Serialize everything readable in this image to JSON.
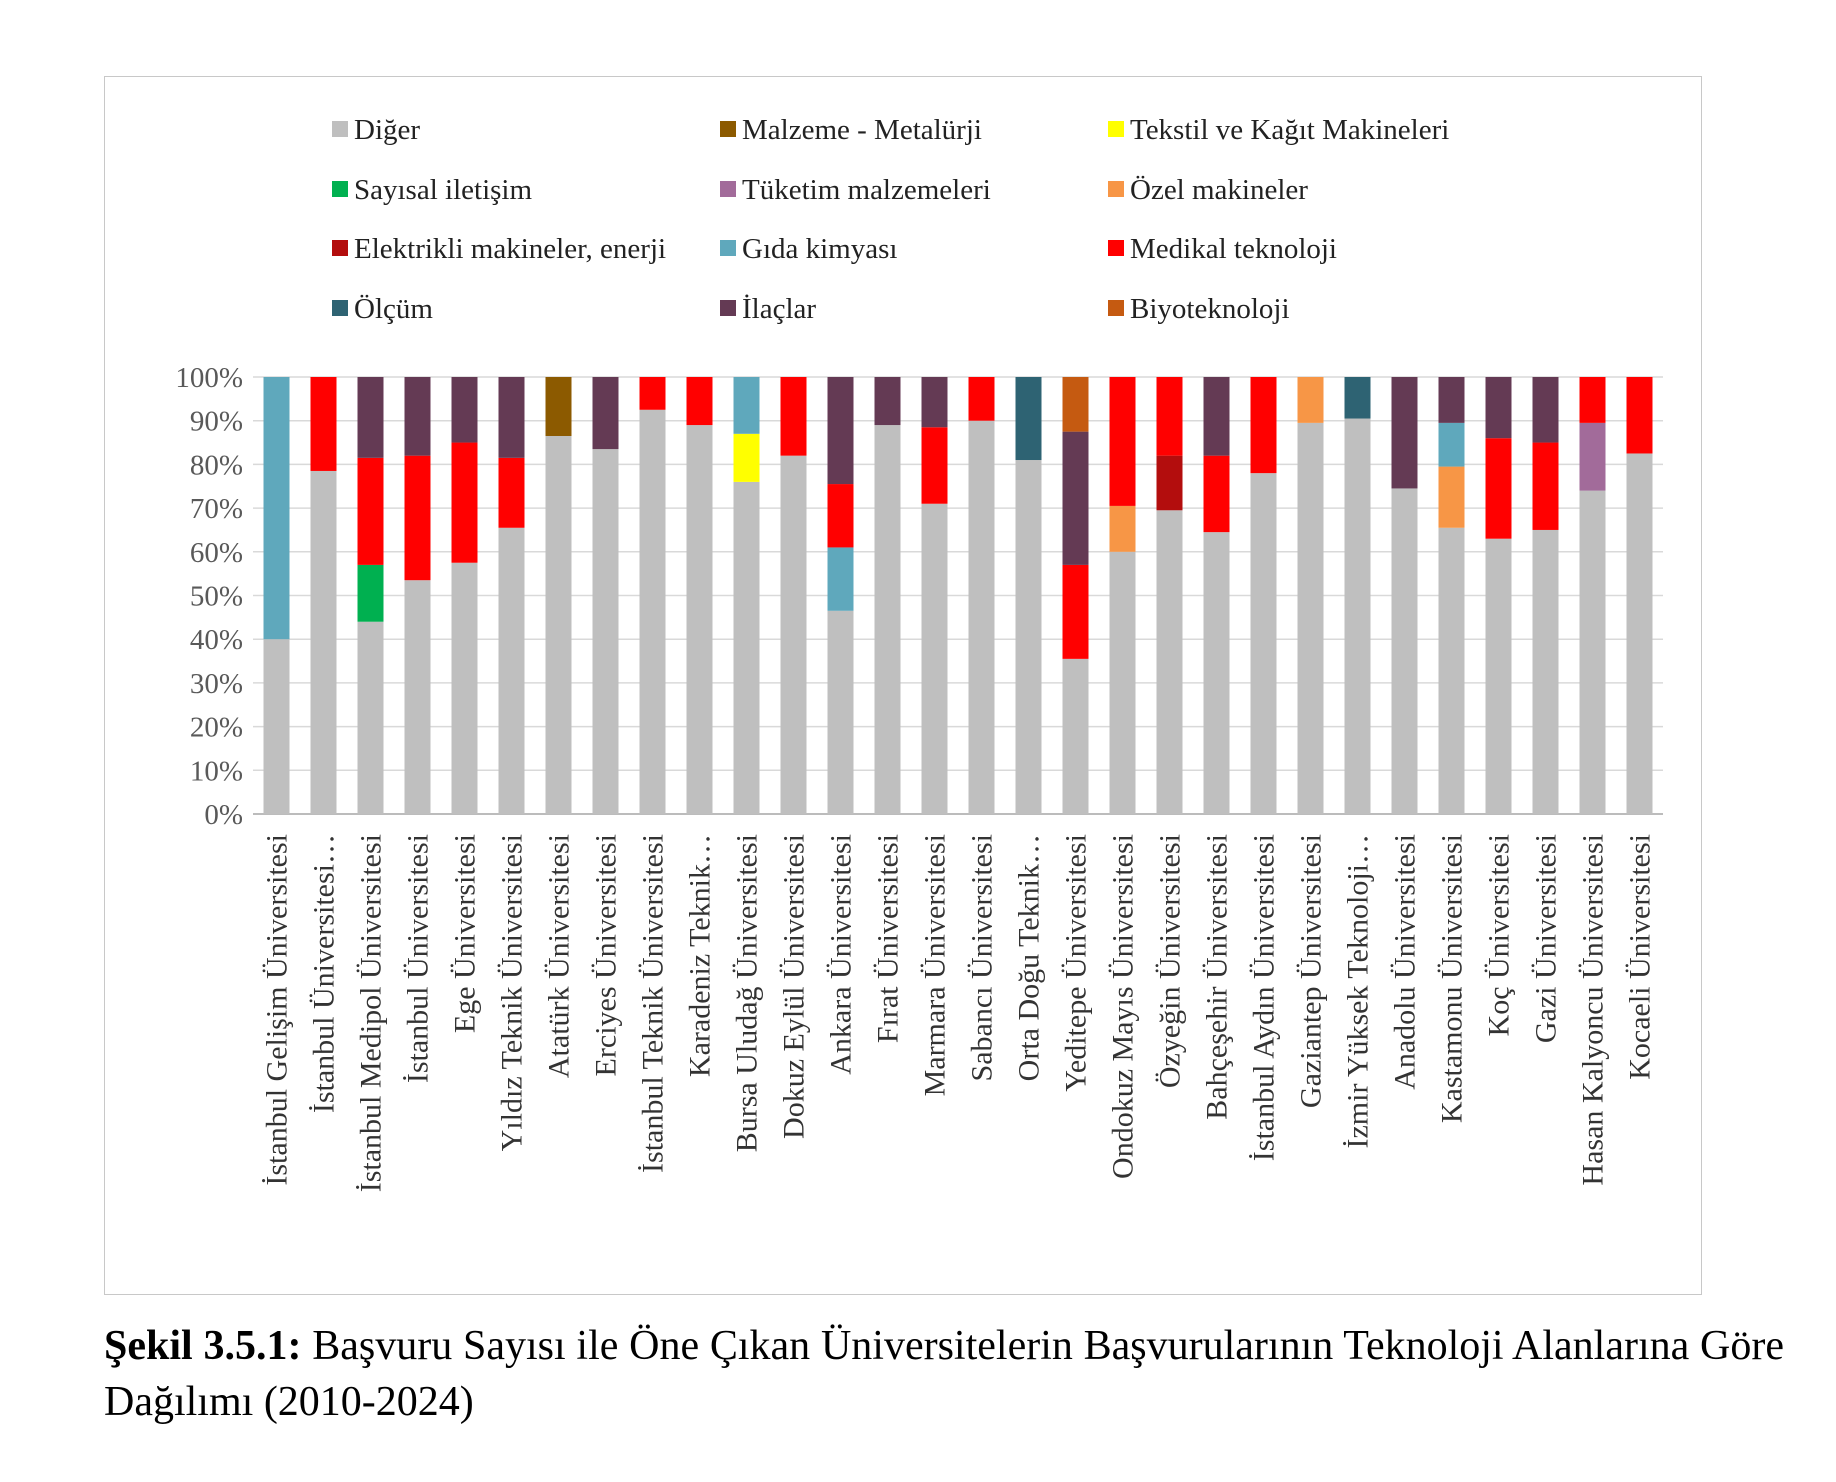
{
  "caption": {
    "label": "Şekil 3.5.1:",
    "text": "Başvuru Sayısı ile Öne Çıkan Üniversitelerin Başvurularının Teknoloji Alanlarına Göre Dağılımı (2010-2024)"
  },
  "chart_data": {
    "type": "bar",
    "stacked": true,
    "percent": true,
    "ylim": [
      0,
      100
    ],
    "yticks": [
      "0%",
      "10%",
      "20%",
      "30%",
      "40%",
      "50%",
      "60%",
      "70%",
      "80%",
      "90%",
      "100%"
    ],
    "grid": true,
    "legend_position": "top",
    "categories": [
      "İstanbul Gelişim Üniversitesi",
      "İstanbul Üniversitesi…",
      "İstanbul Medipol Üniversitesi",
      "İstanbul Üniversitesi",
      "Ege Üniversitesi",
      "Yıldız Teknik Üniversitesi",
      "Atatürk Üniversitesi",
      "Erciyes Üniversitesi",
      "İstanbul Teknik Üniversitesi",
      "Karadeniz Teknik…",
      "Bursa Uludağ Üniversitesi",
      "Dokuz Eylül Üniversitesi",
      "Ankara Üniversitesi",
      "Fırat Üniversitesi",
      "Marmara Üniversitesi",
      "Sabancı Üniversitesi",
      "Orta Doğu Teknik…",
      "Yeditepe Üniversitesi",
      "Ondokuz Mayıs Üniversitesi",
      "Özyeğin Üniversitesi",
      "Bahçeşehir Üniversitesi",
      "İstanbul Aydın Üniversitesi",
      "Gaziantep Üniversitesi",
      "İzmir Yüksek Teknoloji…",
      "Anadolu Üniversitesi",
      "Kastamonu Üniversitesi",
      "Koç Üniversitesi",
      "Gazi Üniversitesi",
      "Hasan Kalyoncu Üniversitesi",
      "Kocaeli Üniversitesi"
    ],
    "series": [
      {
        "name": "Diğer",
        "color": "#bfbfbf",
        "values": [
          40,
          78.5,
          44,
          53.5,
          57.5,
          65.5,
          86.5,
          83.5,
          92.5,
          89,
          76,
          82,
          46.5,
          89,
          71,
          90,
          81,
          35.5,
          60,
          69.5,
          64.5,
          78,
          89.5,
          90.5,
          74.5,
          65.5,
          63,
          65,
          74,
          82.5
        ]
      },
      {
        "name": "Malzeme - Metalürji",
        "color": "#8c5a00",
        "values": [
          0,
          0,
          0,
          0,
          0,
          0,
          13.5,
          0,
          0,
          0,
          0,
          0,
          0,
          0,
          0,
          0,
          0,
          0,
          0,
          0,
          0,
          0,
          0,
          0,
          0,
          0,
          0,
          0,
          0,
          0
        ]
      },
      {
        "name": "Tekstil ve Kağıt Makineleri",
        "color": "#ffff00",
        "values": [
          0,
          0,
          0,
          0,
          0,
          0,
          0,
          0,
          0,
          0,
          11,
          0,
          0,
          0,
          0,
          0,
          0,
          0,
          0,
          0,
          0,
          0,
          0,
          0,
          0,
          0,
          0,
          0,
          0,
          0
        ]
      },
      {
        "name": "Sayısal iletişim",
        "color": "#00b050",
        "values": [
          0,
          0,
          13,
          0,
          0,
          0,
          0,
          0,
          0,
          0,
          0,
          0,
          0,
          0,
          0,
          0,
          0,
          0,
          0,
          0,
          0,
          0,
          0,
          0,
          0,
          0,
          0,
          0,
          0,
          0
        ]
      },
      {
        "name": "Tüketim malzemeleri",
        "color": "#a26b9a",
        "values": [
          0,
          0,
          0,
          0,
          0,
          0,
          0,
          0,
          0,
          0,
          0,
          0,
          0,
          0,
          0,
          0,
          0,
          0,
          0,
          0,
          0,
          0,
          0,
          0,
          0,
          0,
          0,
          0,
          15.5,
          0
        ]
      },
      {
        "name": "Özel makineler",
        "color": "#f79646",
        "values": [
          0,
          0,
          0,
          0,
          0,
          0,
          0,
          0,
          0,
          0,
          0,
          0,
          0,
          0,
          0,
          0,
          0,
          0,
          10.5,
          0,
          0,
          0,
          10.5,
          0,
          0,
          14,
          0,
          0,
          0,
          0
        ]
      },
      {
        "name": "Elektrikli makineler, enerji",
        "color": "#b30d0d",
        "values": [
          0,
          0,
          0,
          0,
          0,
          0,
          0,
          0,
          0,
          0,
          0,
          0,
          0,
          0,
          0,
          0,
          0,
          0,
          0,
          12.5,
          0,
          0,
          0,
          0,
          0,
          0,
          0,
          0,
          0,
          0
        ]
      },
      {
        "name": "Gıda kimyası",
        "color": "#5fa8bc",
        "values": [
          60,
          0,
          0,
          0,
          0,
          0,
          0,
          0,
          0,
          0,
          13,
          0,
          14.5,
          0,
          0,
          0,
          0,
          0,
          0,
          0,
          0,
          0,
          0,
          0,
          0,
          10,
          0,
          0,
          0,
          0
        ]
      },
      {
        "name": "Medikal teknoloji",
        "color": "#ff0000",
        "values": [
          0,
          21.5,
          24.5,
          28.5,
          27.5,
          16,
          0,
          0,
          7.5,
          11,
          0,
          18,
          14.5,
          0,
          17.5,
          10,
          0,
          21.5,
          29.5,
          18,
          17.5,
          22,
          0,
          0,
          0,
          0,
          23,
          20,
          10.5,
          17.5
        ]
      },
      {
        "name": "Ölçüm",
        "color": "#2e6373",
        "values": [
          0,
          0,
          0,
          0,
          0,
          0,
          0,
          0,
          0,
          0,
          0,
          0,
          0,
          0,
          0,
          0,
          19,
          0,
          0,
          0,
          0,
          0,
          0,
          9.5,
          0,
          0,
          0,
          0,
          0,
          0
        ]
      },
      {
        "name": "İlaçlar",
        "color": "#643a54",
        "values": [
          0,
          0,
          18.5,
          18,
          15,
          18.5,
          0,
          16.5,
          0,
          0,
          0,
          0,
          24.5,
          11,
          11.5,
          0,
          0,
          30.5,
          0,
          0,
          18,
          0,
          0,
          0,
          25.5,
          10.5,
          14,
          15,
          0,
          0
        ]
      },
      {
        "name": "Biyoteknoloji",
        "color": "#c55a11",
        "values": [
          0,
          0,
          0,
          0,
          0,
          0,
          0,
          0,
          0,
          0,
          0,
          0,
          0,
          0,
          0,
          0,
          0,
          12.5,
          0,
          0,
          0,
          0,
          0,
          0,
          0,
          0,
          0,
          0,
          0,
          0
        ]
      }
    ]
  }
}
